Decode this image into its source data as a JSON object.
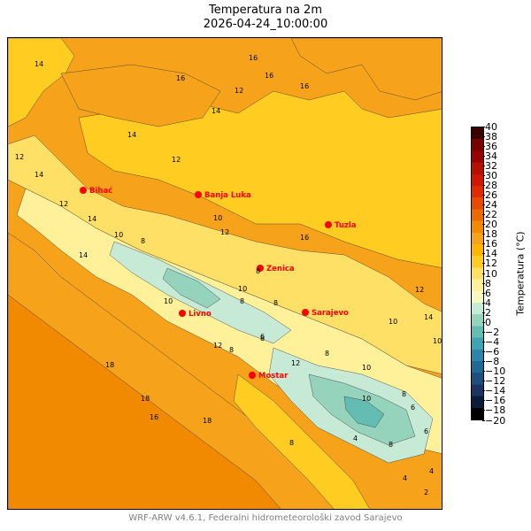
{
  "title": "Temperatura na 2m",
  "subtitle": "2026-04-24_10:00:00",
  "footer": "WRF-ARW v4.6.1, Federalni hidrometeorološki zavod Sarajevo",
  "colorbar": {
    "label": "Temperatura (°C)",
    "min": -20,
    "max": 40,
    "ticks": [
      "40",
      "38",
      "36",
      "34",
      "32",
      "30",
      "28",
      "26",
      "24",
      "22",
      "20",
      "18",
      "16",
      "14",
      "12",
      "10",
      "8",
      "6",
      "4",
      "2",
      "0",
      "−2",
      "−4",
      "−6",
      "−8",
      "−10",
      "−12",
      "−14",
      "−16",
      "−18",
      "−20"
    ],
    "colors": [
      "#000000",
      "#0d1b3a",
      "#1b3560",
      "#1f4f7e",
      "#1f6a95",
      "#2a86ab",
      "#3ea3b3",
      "#64bdb2",
      "#96d3bd",
      "#c6ead6",
      "#f7f9c0",
      "#fff19a",
      "#ffe066",
      "#ffcc22",
      "#ffb400",
      "#f6a21a",
      "#f28a00",
      "#ec6a00",
      "#e94a00",
      "#e02a00",
      "#d01600",
      "#b80e00",
      "#9a0000",
      "#7a0000",
      "#3a0000"
    ]
  },
  "map": {
    "colors": {
      "light": "#ffe066",
      "warm": "#ffcc22",
      "orange": "#f6a21a",
      "cool": "#c6ead6",
      "cold": "#96d3bd",
      "coldest": "#64bdb2",
      "pale": "#fff19a"
    },
    "cities": [
      {
        "name": "Bihać"
      },
      {
        "name": "Banja Luka"
      },
      {
        "name": "Tuzla"
      },
      {
        "name": "Zenica"
      },
      {
        "name": "Livno"
      },
      {
        "name": "Sarajevo"
      },
      {
        "name": "Mostar"
      }
    ],
    "contour_labels": [
      "14",
      "16",
      "16",
      "12",
      "14",
      "16",
      "16",
      "14",
      "12",
      "12",
      "14",
      "12",
      "14",
      "10",
      "14",
      "8",
      "12",
      "10",
      "12",
      "8",
      "10",
      "8",
      "8",
      "10",
      "8",
      "6",
      "12",
      "8",
      "10",
      "18",
      "8",
      "10",
      "12",
      "14",
      "16",
      "18",
      "16",
      "18",
      "8",
      "10",
      "8",
      "6",
      "4",
      "8",
      "6",
      "4",
      "2",
      "4",
      "10",
      "12"
    ]
  }
}
